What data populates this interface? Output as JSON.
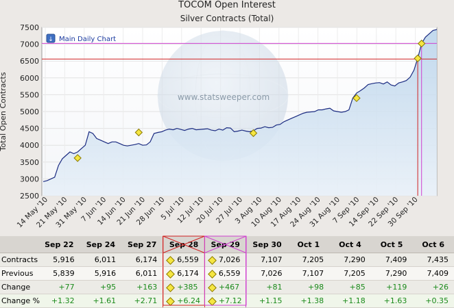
{
  "chart_data": {
    "type": "area",
    "title": "TOCOM Open Interest",
    "subtitle": "Silver Contracts (Total)",
    "ylabel": "Total Open Contracts",
    "xlabel": "",
    "ylim": [
      2500,
      7500
    ],
    "y_ticks": [
      2500,
      3000,
      3500,
      4000,
      4500,
      5000,
      5500,
      6000,
      6500,
      7000,
      7500
    ],
    "x_tick_labels": [
      "14 May '10",
      "21 May '10",
      "31 May '10",
      "7 Jun '10",
      "14 Jun '10",
      "21 Jun '10",
      "28 Jun '10",
      "5 Jul '10",
      "12 Jul '10",
      "20 Jul '10",
      "27 Jul '10",
      "3 Aug '10",
      "10 Aug '10",
      "17 Aug '10",
      "24 Aug '10",
      "31 Aug '10",
      "7 Sep '10",
      "14 Sep '10",
      "22 Sep '10",
      "30 Sep '10"
    ],
    "grid": true,
    "series": [
      {
        "values": [
          2920,
          2950,
          3000,
          3050,
          3400,
          3600,
          3700,
          3800,
          3750,
          3800,
          3900,
          4000,
          4400,
          4350,
          4200,
          4150,
          4100,
          4050,
          4100,
          4100,
          4050,
          4000,
          3980,
          4000,
          4020,
          4050,
          4000,
          4010,
          4100,
          4350,
          4380,
          4400,
          4450,
          4480,
          4460,
          4500,
          4470,
          4440,
          4480,
          4500,
          4460,
          4470,
          4480,
          4490,
          4450,
          4430,
          4480,
          4450,
          4520,
          4510,
          4400,
          4420,
          4450,
          4420,
          4400,
          4430,
          4500,
          4510,
          4550,
          4520,
          4530,
          4600,
          4620,
          4700,
          4750,
          4800,
          4850,
          4900,
          4950,
          4980,
          4990,
          5000,
          5050,
          5050,
          5080,
          5100,
          5020,
          5000,
          4980,
          5000,
          5050,
          5400,
          5550,
          5620,
          5700,
          5800,
          5830,
          5850,
          5860,
          5820,
          5880,
          5790,
          5760,
          5850,
          5880,
          5920,
          6020,
          6230,
          6580,
          7020,
          7210,
          7310,
          7410,
          7435
        ],
        "markers": [
          3620,
          4380,
          4360,
          5400,
          6580,
          7020
        ]
      }
    ],
    "reference_lines": [
      6559,
      7026
    ],
    "annotation": "Main Daily Chart",
    "watermark": "www.statsweeper.com"
  },
  "colors": {
    "line": "#1a2a80",
    "area": "#bcd6ec",
    "ref_red": "#d02020",
    "ref_magenta": "#d040d0",
    "marker": "#f5e642",
    "positive": "#1a8a1a"
  },
  "table": {
    "columns": [
      "Sep 22",
      "Sep 24",
      "Sep 27",
      "Sep 28",
      "Sep 29",
      "Sep 30",
      "Oct 1",
      "Oct 4",
      "Oct 5",
      "Oct 6"
    ],
    "rows": [
      {
        "label": "Contracts",
        "values": [
          "5,916",
          "6,011",
          "6,174",
          "6,559",
          "7,026",
          "7,107",
          "7,205",
          "7,290",
          "7,409",
          "7,435"
        ]
      },
      {
        "label": "Previous",
        "values": [
          "5,839",
          "5,916",
          "6,011",
          "6,174",
          "6,559",
          "7,026",
          "7,107",
          "7,205",
          "7,290",
          "7,409"
        ]
      },
      {
        "label": "Change",
        "values": [
          "+77",
          "+95",
          "+163",
          "+385",
          "+467",
          "+81",
          "+98",
          "+85",
          "+119",
          "+26"
        ]
      },
      {
        "label": "Change %",
        "values": [
          "+1.32",
          "+1.61",
          "+2.71",
          "+6.24",
          "+7.12",
          "+1.15",
          "+1.38",
          "+1.18",
          "+1.63",
          "+0.35"
        ]
      }
    ]
  }
}
